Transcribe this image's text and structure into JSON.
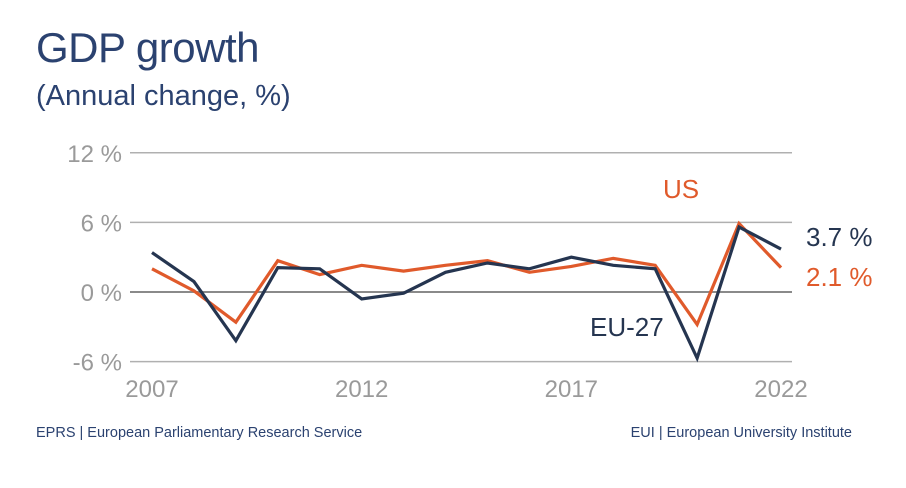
{
  "title": "GDP growth",
  "subtitle": "(Annual change, %)",
  "footer": {
    "left": "EPRS | European Parliamentary Research Service",
    "right": "EUI | European University Institute"
  },
  "chart_data": {
    "type": "line",
    "x": [
      2007,
      2008,
      2009,
      2010,
      2011,
      2012,
      2013,
      2014,
      2015,
      2016,
      2017,
      2018,
      2019,
      2020,
      2021,
      2022
    ],
    "series": [
      {
        "name": "EU-27",
        "color": "#253550",
        "values": [
          3.4,
          0.9,
          -4.2,
          2.1,
          2.0,
          -0.6,
          -0.1,
          1.7,
          2.5,
          2.0,
          3.0,
          2.3,
          2.0,
          -5.7,
          5.6,
          3.7
        ],
        "end_label": "3.7 %"
      },
      {
        "name": "US",
        "color": "#e05a2b",
        "values": [
          2.0,
          0.1,
          -2.6,
          2.7,
          1.5,
          2.3,
          1.8,
          2.3,
          2.7,
          1.7,
          2.2,
          2.9,
          2.3,
          -2.8,
          5.9,
          2.1
        ],
        "end_label": "2.1 %"
      }
    ],
    "ylim": [
      -6,
      12
    ],
    "yticks": [
      12,
      6,
      0,
      -6
    ],
    "ytick_labels": [
      "12 %",
      "6 %",
      "0 %",
      "-6 %"
    ],
    "xticks": [
      2007,
      2012,
      2017,
      2022
    ],
    "xtick_labels": [
      "2007",
      "2012",
      "2017",
      "2022"
    ],
    "grid": true,
    "xlabel": "",
    "ylabel": ""
  }
}
